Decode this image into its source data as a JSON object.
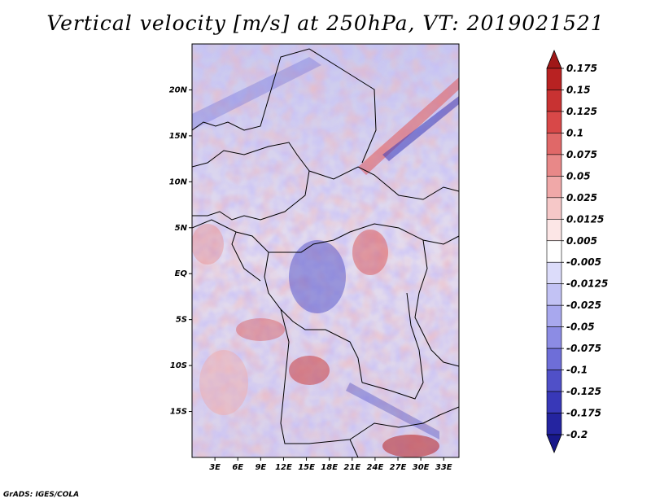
{
  "title": "Vertical velocity [m/s] at 250hPa, VT: 2019021521",
  "footer": "GrADS: IGES/COLA",
  "map": {
    "lat_ticks": [
      "20N",
      "15N",
      "10N",
      "5N",
      "EQ",
      "5S",
      "10S",
      "15S"
    ],
    "lat_values": [
      20,
      15,
      10,
      5,
      0,
      -5,
      -10,
      -15
    ],
    "lon_ticks": [
      "3E",
      "6E",
      "9E",
      "12E",
      "15E",
      "18E",
      "21E",
      "24E",
      "27E",
      "30E",
      "33E"
    ],
    "lon_values": [
      3,
      6,
      9,
      12,
      15,
      18,
      21,
      24,
      27,
      30,
      33
    ],
    "lon_range": [
      0,
      35
    ],
    "lat_range": [
      -20,
      25
    ]
  },
  "colorbar": {
    "labels": [
      "0.175",
      "0.15",
      "0.125",
      "0.1",
      "0.075",
      "0.05",
      "0.025",
      "0.0125",
      "0.005",
      "-0.005",
      "-0.0125",
      "-0.025",
      "-0.05",
      "-0.075",
      "-0.1",
      "-0.125",
      "-0.175",
      "-0.2"
    ],
    "colors": [
      "#a01818",
      "#b82222",
      "#c83232",
      "#d84848",
      "#e06868",
      "#e88888",
      "#f0a8a8",
      "#f6c8c8",
      "#fce6e6",
      "#ffffff",
      "#dcdcfa",
      "#c2c2f4",
      "#a8a8ee",
      "#8c8ce4",
      "#6e6ed8",
      "#5050c8",
      "#3838b8",
      "#2424a0",
      "#18188a"
    ]
  }
}
